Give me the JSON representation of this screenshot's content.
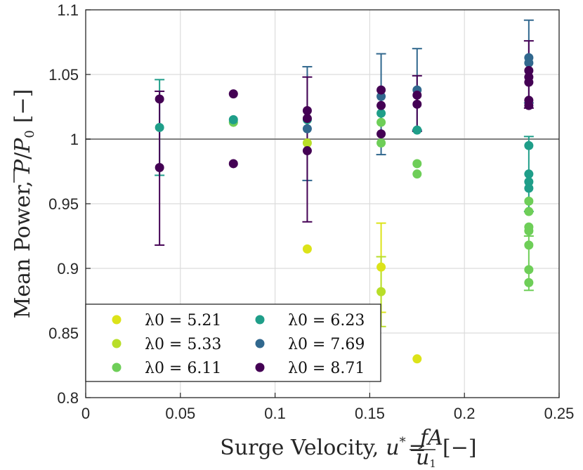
{
  "chart_data": {
    "type": "scatter",
    "xlabel": "Surge Velocity, u* = fA/u1 [−]",
    "ylabel": "Mean Power, P̄/P0 [−]",
    "xlim": [
      0,
      0.25
    ],
    "ylim": [
      0.8,
      1.1
    ],
    "xticks": [
      0,
      0.05,
      0.1,
      0.15,
      0.2,
      0.25
    ],
    "xtick_labels": [
      "0",
      "0.05",
      "0.1",
      "0.15",
      "0.2",
      "0.25"
    ],
    "yticks": [
      0.8,
      0.85,
      0.9,
      0.95,
      1.0,
      1.05,
      1.1
    ],
    "ytick_labels": [
      "0.8",
      "0.85",
      "0.9",
      "0.95",
      "1",
      "1.05",
      "1.1"
    ],
    "grid": true,
    "reference_line_y": 1.0,
    "legend_location": "bottom-left",
    "series": [
      {
        "name": "λ0 = 5.21",
        "color": "#dce319",
        "points": [
          [
            0.156,
            0.901
          ],
          [
            0.175,
            0.83
          ],
          [
            0.117,
            0.915
          ]
        ],
        "errorbars": [
          [
            0.156,
            0.901,
            0.866,
            0.935
          ]
        ]
      },
      {
        "name": "λ0 = 5.33",
        "color": "#b8de29",
        "points": [
          [
            0.156,
            0.882
          ],
          [
            0.117,
            0.997
          ]
        ],
        "errorbars": [
          [
            0.156,
            0.882,
            0.855,
            0.909
          ]
        ]
      },
      {
        "name": "λ0 = 6.11",
        "color": "#6ece58",
        "points": [
          [
            0.234,
            0.889
          ],
          [
            0.234,
            0.899
          ],
          [
            0.234,
            0.918
          ],
          [
            0.234,
            0.929
          ],
          [
            0.234,
            0.932
          ],
          [
            0.234,
            0.944
          ],
          [
            0.234,
            0.952
          ],
          [
            0.175,
            0.973
          ],
          [
            0.175,
            0.981
          ],
          [
            0.156,
            1.013
          ],
          [
            0.156,
            0.997
          ],
          [
            0.078,
            1.013
          ]
        ],
        "errorbars": [
          [
            0.234,
            0.905,
            0.883,
            0.925
          ]
        ]
      },
      {
        "name": "λ0 = 6.23",
        "color": "#1f9e89",
        "points": [
          [
            0.234,
            0.995
          ],
          [
            0.234,
            0.973
          ],
          [
            0.234,
            0.967
          ],
          [
            0.234,
            0.962
          ],
          [
            0.156,
            1.02
          ],
          [
            0.175,
            1.007
          ],
          [
            0.117,
            1.015
          ],
          [
            0.078,
            1.015
          ],
          [
            0.039,
            1.009
          ]
        ],
        "errorbars": [
          [
            0.039,
            1.009,
            0.972,
            1.046
          ],
          [
            0.234,
            0.965,
            0.944,
            1.002
          ]
        ]
      },
      {
        "name": "λ0 = 7.69",
        "color": "#31688e",
        "points": [
          [
            0.234,
            1.063
          ],
          [
            0.234,
            1.059
          ],
          [
            0.175,
            1.038
          ],
          [
            0.156,
            1.033
          ],
          [
            0.117,
            1.008
          ]
        ],
        "errorbars": [
          [
            0.117,
            1.012,
            0.968,
            1.056
          ],
          [
            0.156,
            1.027,
            0.988,
            1.066
          ],
          [
            0.175,
            1.038,
            1.007,
            1.07
          ],
          [
            0.234,
            1.06,
            1.028,
            1.092
          ]
        ]
      },
      {
        "name": "λ0 = 8.71",
        "color": "#440154",
        "points": [
          [
            0.039,
            0.978
          ],
          [
            0.039,
            1.031
          ],
          [
            0.078,
            0.981
          ],
          [
            0.078,
            1.035
          ],
          [
            0.117,
            1.022
          ],
          [
            0.117,
            1.016
          ],
          [
            0.117,
            0.991
          ],
          [
            0.156,
            1.038
          ],
          [
            0.156,
            1.026
          ],
          [
            0.156,
            1.004
          ],
          [
            0.175,
            1.034
          ],
          [
            0.175,
            1.027
          ],
          [
            0.234,
            1.053
          ],
          [
            0.234,
            1.048
          ],
          [
            0.234,
            1.044
          ],
          [
            0.234,
            1.03
          ],
          [
            0.234,
            1.026
          ]
        ],
        "errorbars": [
          [
            0.039,
            0.978,
            0.918,
            1.037
          ],
          [
            0.117,
            0.992,
            0.936,
            1.048
          ],
          [
            0.175,
            1.027,
            1.006,
            1.049
          ],
          [
            0.234,
            1.05,
            1.024,
            1.076
          ]
        ]
      }
    ]
  }
}
